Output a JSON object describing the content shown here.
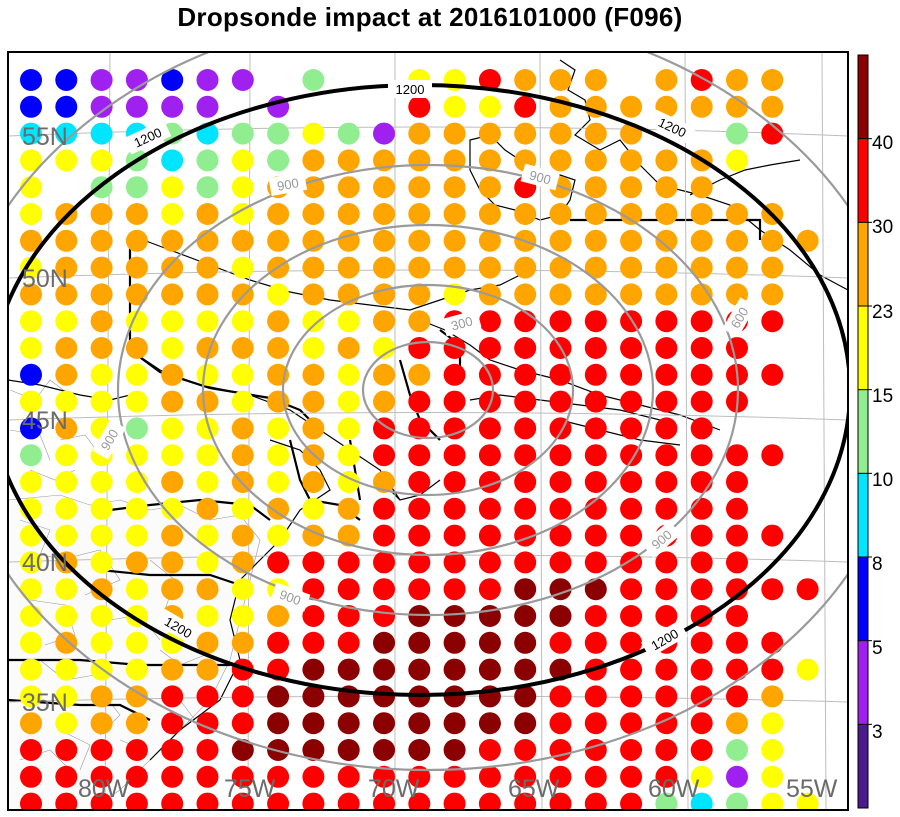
{
  "title": "Dropsonde impact at 2016101000 (F096)",
  "colorbar": {
    "colors": [
      "#4b1a8c",
      "#a020f0",
      "#0000ff",
      "#00e5ff",
      "#90ee90",
      "#ffff00",
      "#ffa500",
      "#ff0000",
      "#8b0000"
    ],
    "tick_labels": [
      "3",
      "5",
      "8",
      "10",
      "15",
      "23",
      "30",
      "40"
    ]
  },
  "lat_labels": [
    "55N",
    "50N",
    "45N",
    "40N",
    "35N"
  ],
  "lon_labels": [
    "80W",
    "75W",
    "70W",
    "65W",
    "60W",
    "55W"
  ],
  "contour_labels": [
    {
      "value": "1200",
      "color": "#000000"
    },
    {
      "value": "1200",
      "color": "#000000"
    },
    {
      "value": "1200",
      "color": "#000000"
    },
    {
      "value": "1200",
      "color": "#000000"
    },
    {
      "value": "1200",
      "color": "#000000"
    },
    {
      "value": "900",
      "color": "#9a9a9a"
    },
    {
      "value": "900",
      "color": "#9a9a9a"
    },
    {
      "value": "900",
      "color": "#9a9a9a"
    },
    {
      "value": "900",
      "color": "#9a9a9a"
    },
    {
      "value": "900",
      "color": "#9a9a9a"
    },
    {
      "value": "300",
      "color": "#9a9a9a"
    },
    {
      "value": "600",
      "color": "#9a9a9a"
    }
  ],
  "dot_grid": {
    "rows": [
      "1122122 4  557ooo o7oo",
      "112222 2   7557ooooooo",
      "33334344542ooooooo  47",
      "55543454oooooooooooo5",
      "5 44545ooooooo7ooooo",
      "5ooo5o5ooooooooooooooo",
      "ooooooooooooooooooooooo",
      "5ooooo5ooooooooooooooo",
      "ooooooo5oooo5ooooooooo",
      "55o5555o55oo7777777777",
      "5ooo5ooo5o57777777777",
      "1o55o55oo5oo7777777777",
      "5555oo5oo5o7777777777",
      "1o5455o5o57777777777",
      "455555o5o5777777777777",
      "5555o5o5o5o7777777777",
      "55555o5o5o77777777777",
      "5555o5o5oo777777777777",
      "5o5oo5o77777777777777",
      "55o5oo55777777888777777",
      "5555o55o7778888877777",
      "5o555oo777888887777777",
      "5555oo77888888887777775",
      "55oo77788888888777777o",
      "o5oo7778888888877777o5",
      "7777778888888777777745",
      "7777777777777777777525",
      "77777777777777777743455",
      "oo77777777777777555457"
    ],
    "legend": "1=blue,2=purple,3=cyan,4=lightgreen,5=yellow,o=orange,7=red,8=darkred"
  }
}
